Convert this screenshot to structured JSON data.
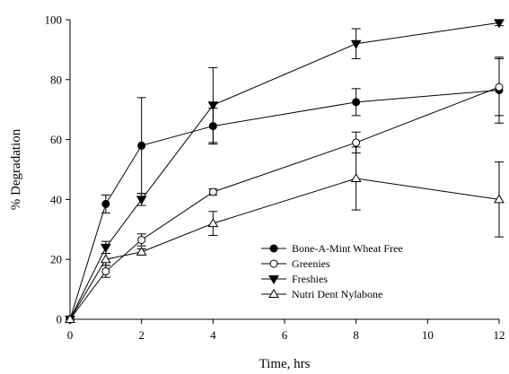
{
  "chart_data": {
    "type": "line",
    "xlabel": "Time, hrs",
    "ylabel": "% Degradation",
    "xlim": [
      0,
      12
    ],
    "ylim": [
      0,
      100
    ],
    "xticks": [
      0,
      2,
      4,
      6,
      8,
      10,
      12
    ],
    "yticks": [
      0,
      20,
      40,
      60,
      80,
      100
    ],
    "grid": false,
    "legend_position": "bottom-right",
    "series": [
      {
        "name": "Bone-A-Mint Wheat Free",
        "marker": "filled-circle",
        "x": [
          0,
          1,
          2,
          4,
          8,
          12
        ],
        "y": [
          0,
          38.5,
          58,
          64.5,
          72.5,
          76.5
        ],
        "err": [
          0,
          3,
          16,
          6,
          4.5,
          11
        ]
      },
      {
        "name": "Greenies",
        "marker": "open-circle",
        "x": [
          0,
          1,
          2,
          4,
          8,
          12
        ],
        "y": [
          0,
          16,
          26.5,
          42.5,
          59,
          77.5
        ],
        "err": [
          0,
          2,
          2,
          1,
          3.5,
          9.5
        ]
      },
      {
        "name": "Freshies",
        "marker": "filled-triangle-down",
        "x": [
          0,
          1,
          2,
          4,
          8,
          12
        ],
        "y": [
          0,
          24,
          40,
          71.5,
          92,
          99
        ],
        "err": [
          0,
          2,
          2,
          12.5,
          5,
          1
        ]
      },
      {
        "name": "Nutri Dent Nylabone",
        "marker": "open-triangle-up",
        "x": [
          0,
          1,
          2,
          4,
          8,
          12
        ],
        "y": [
          0,
          20,
          22.5,
          32,
          47,
          40
        ],
        "err": [
          0,
          2,
          1,
          4,
          10.5,
          12.5
        ]
      }
    ]
  }
}
